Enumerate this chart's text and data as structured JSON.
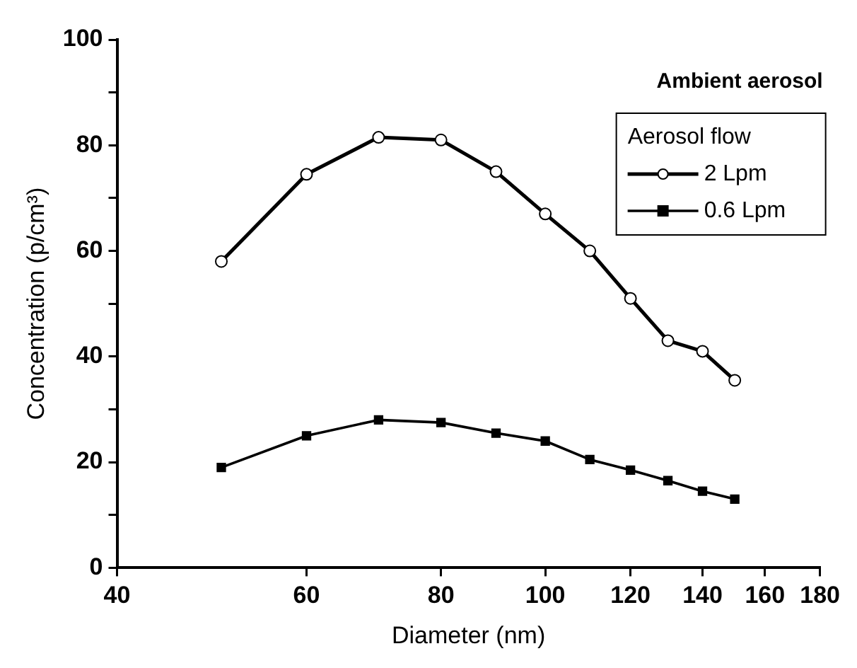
{
  "chart_data": {
    "type": "line",
    "xlabel": "Diameter (nm)",
    "ylabel": "Concentration (p/cm³)",
    "legend_title": "Aerosol flow",
    "legend": "top right",
    "annotations": [
      "Ambient aerosol"
    ],
    "log": "x",
    "x": [
      50,
      60,
      70,
      80,
      90,
      100,
      110,
      120,
      130,
      140,
      150
    ],
    "xlim": [
      40,
      180
    ],
    "xticks": [
      40,
      60,
      80,
      100,
      120,
      140,
      160,
      180
    ],
    "ylim": [
      0,
      100
    ],
    "yticks": [
      0,
      {
        "value": 10,
        "label": null
      },
      20,
      {
        "value": 30,
        "label": null
      },
      40,
      {
        "value": 50,
        "label": null
      },
      60,
      {
        "value": 70,
        "label": null
      },
      80,
      {
        "value": 90,
        "label": null
      },
      100
    ],
    "grid": false,
    "line_style": "solid",
    "series": [
      {
        "name": "2 Lpm",
        "color": "#000000",
        "marker": "circle",
        "values": [
          58,
          74.5,
          81.5,
          81,
          75,
          67,
          60,
          51,
          43,
          41,
          35.5
        ]
      },
      {
        "name": "0.6 Lpm",
        "color": "#000000",
        "marker": "square",
        "values": [
          19,
          25,
          28,
          27.5,
          25.5,
          24,
          20.5,
          18.5,
          16.5,
          14.5,
          13
        ]
      }
    ]
  }
}
